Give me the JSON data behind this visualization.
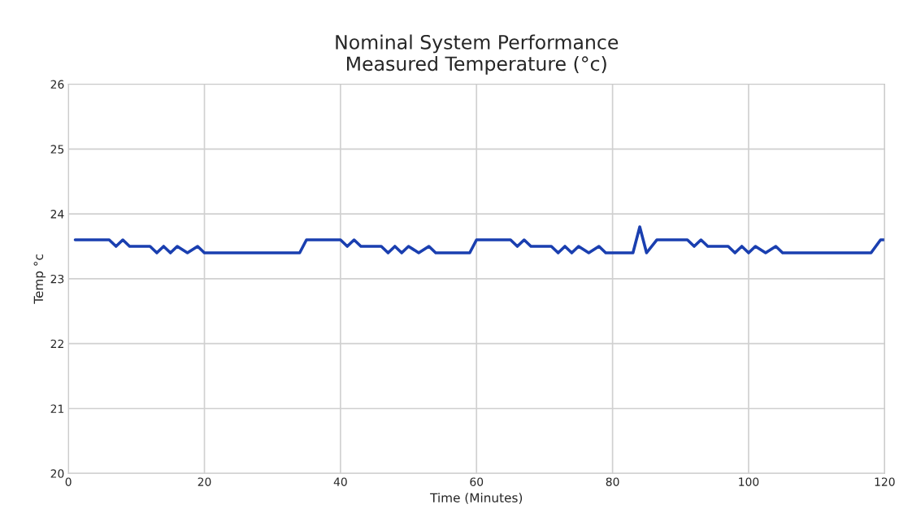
{
  "chart_data": {
    "type": "line",
    "title": "Nominal System Performance\nMeasured Temperature (°c)",
    "xlabel": "Time (Minutes)",
    "ylabel": "Temp °c",
    "x": [
      1,
      6,
      7,
      8,
      9,
      12,
      13,
      14,
      15,
      16,
      17.5,
      19,
      20,
      33,
      34,
      35,
      40,
      41,
      42,
      43,
      46,
      47,
      48,
      49,
      50,
      51.5,
      53,
      54,
      58.5,
      59,
      60,
      65,
      66,
      67,
      68,
      71,
      72,
      73,
      74,
      75,
      76.5,
      78,
      79,
      82.5,
      83,
      84,
      85,
      86.5,
      91,
      92,
      93,
      94,
      97,
      98,
      99,
      100,
      101,
      102.5,
      104,
      105,
      117.5,
      118,
      119.4,
      120
    ],
    "series": [
      {
        "color": "#1a3fb0",
        "values": [
          23.6,
          23.6,
          23.5,
          23.6,
          23.5,
          23.5,
          23.4,
          23.5,
          23.4,
          23.5,
          23.4,
          23.5,
          23.4,
          23.4,
          23.4,
          23.6,
          23.6,
          23.5,
          23.6,
          23.5,
          23.5,
          23.4,
          23.5,
          23.4,
          23.5,
          23.4,
          23.5,
          23.4,
          23.4,
          23.4,
          23.6,
          23.6,
          23.5,
          23.6,
          23.5,
          23.5,
          23.4,
          23.5,
          23.4,
          23.5,
          23.4,
          23.5,
          23.4,
          23.4,
          23.4,
          23.8,
          23.4,
          23.6,
          23.6,
          23.5,
          23.6,
          23.5,
          23.5,
          23.4,
          23.5,
          23.4,
          23.5,
          23.4,
          23.5,
          23.4,
          23.4,
          23.4,
          23.6,
          23.6
        ]
      }
    ],
    "xlim": [
      0,
      120
    ],
    "xticks": [
      0,
      20,
      40,
      60,
      80,
      100,
      120
    ],
    "ylim": [
      20,
      26
    ],
    "yticks": [
      20,
      21,
      22,
      23,
      24,
      25,
      26
    ],
    "grid": true,
    "line_style": "solid"
  }
}
